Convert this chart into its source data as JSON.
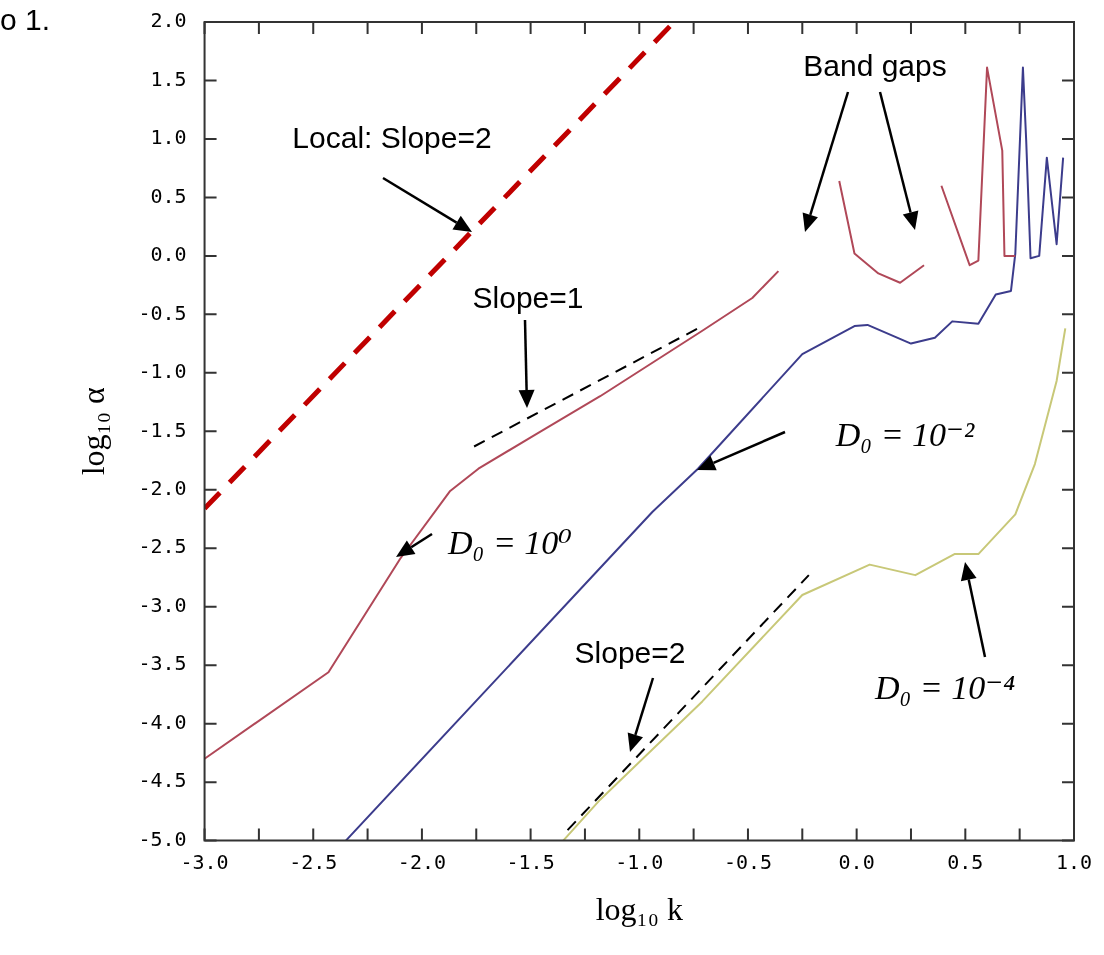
{
  "chart_data": {
    "type": "line",
    "xlabel": "log₁₀ k",
    "ylabel": "log₁₀ α",
    "xlim": [
      -3.0,
      1.0
    ],
    "xticks": [
      {
        "value": -3,
        "label": "-3.0"
      },
      {
        "value": -2.75,
        "label": null
      },
      {
        "value": -2.5,
        "label": "-2.5"
      },
      {
        "value": -2.25,
        "label": null
      },
      {
        "value": -2,
        "label": "-2.0"
      },
      {
        "value": -1.75,
        "label": null
      },
      {
        "value": -1.5,
        "label": "-1.5"
      },
      {
        "value": -1.25,
        "label": null
      },
      {
        "value": -1,
        "label": "-1.0"
      },
      {
        "value": -0.75,
        "label": null
      },
      {
        "value": -0.5,
        "label": "-0.5"
      },
      {
        "value": -0.25,
        "label": null
      },
      {
        "value": 0,
        "label": "0.0"
      },
      {
        "value": 0.25,
        "label": null
      },
      {
        "value": 0.5,
        "label": "0.5"
      },
      {
        "value": 0.75,
        "label": null
      },
      {
        "value": 1,
        "label": "1.0"
      }
    ],
    "ylim": [
      -5.0,
      2.0
    ],
    "yticks": [
      {
        "value": -5,
        "label": "-5.0"
      },
      {
        "value": -4.5,
        "label": "-4.5"
      },
      {
        "value": -4,
        "label": "-4.0"
      },
      {
        "value": -3.5,
        "label": "-3.5"
      },
      {
        "value": -3,
        "label": "-3.0"
      },
      {
        "value": -2.5,
        "label": "-2.5"
      },
      {
        "value": -2,
        "label": "-2.0"
      },
      {
        "value": -1.5,
        "label": "-1.5"
      },
      {
        "value": -1,
        "label": "-1.0"
      },
      {
        "value": -0.5,
        "label": "-0.5"
      },
      {
        "value": 0,
        "label": "0.0"
      },
      {
        "value": 0.5,
        "label": "0.5"
      },
      {
        "value": 1,
        "label": "1.0"
      },
      {
        "value": 1.5,
        "label": "1.5"
      },
      {
        "value": 2,
        "label": "2.0"
      }
    ],
    "marker": "none",
    "series": [
      {
        "color": "#c00000",
        "line_style": "dashed",
        "x": [
          -3.0,
          -0.84
        ],
        "values": [
          -2.16,
          2.0
        ]
      },
      {
        "color": "#b04858",
        "line_style": "solid",
        "x": [
          -3.0,
          -2.43,
          -2.1,
          -1.87,
          -1.74,
          -1.48,
          -1.18,
          -0.71,
          -0.48,
          -0.36,
          -0.22,
          -0.08,
          -0.01,
          0.1,
          0.2,
          0.31,
          0.35,
          0.39,
          0.52,
          0.56,
          0.6,
          0.67,
          0.68,
          0.73
        ],
        "values": [
          -4.3,
          -3.56,
          -2.59,
          -2.01,
          -1.82,
          -1.53,
          -1.2,
          -0.64,
          -0.36,
          -0.13,
          null,
          0.64,
          0.02,
          -0.15,
          -0.23,
          -0.08,
          null,
          0.6,
          -0.08,
          -0.04,
          1.61,
          0.9,
          0.0,
          0.0
        ]
      },
      {
        "color": "#3c3c8c",
        "line_style": "solid",
        "x": [
          -2.35,
          -0.94,
          -0.73,
          -0.25,
          -0.01,
          0.05,
          0.25,
          0.36,
          0.44,
          0.56,
          0.64,
          0.71,
          0.73,
          0.765,
          0.78,
          0.8,
          0.84,
          0.875,
          0.92,
          0.95
        ],
        "values": [
          -5.0,
          -2.19,
          -1.82,
          -0.84,
          -0.6,
          -0.59,
          -0.75,
          -0.7,
          -0.56,
          -0.58,
          -0.33,
          -0.3,
          0.02,
          1.61,
          0.99,
          -0.02,
          0.0,
          0.84,
          0.1,
          0.84
        ]
      },
      {
        "color": "#c8c878",
        "line_style": "solid",
        "x": [
          -1.35,
          -1.18,
          -0.71,
          -0.25,
          0.06,
          0.27,
          0.45,
          0.56,
          0.73,
          0.82,
          0.92,
          0.96
        ],
        "values": [
          -5.0,
          -4.65,
          -3.81,
          -2.9,
          -2.64,
          -2.73,
          -2.55,
          -2.55,
          -2.21,
          -1.78,
          -1.07,
          -0.62
        ]
      },
      {
        "color": "#000000",
        "line_style": "dashed",
        "x": [
          -1.76,
          -0.73
        ],
        "values": [
          -1.63,
          -0.62
        ]
      },
      {
        "color": "#000000",
        "line_style": "dashed",
        "x": [
          -1.33,
          -0.22
        ],
        "values": [
          -4.91,
          -2.73
        ]
      }
    ],
    "annotations": [
      "Local: Slope=2",
      "Slope=1",
      "D₀ = 10⁰",
      "D₀ = 10⁻²",
      "Slope=2",
      "D₀ = 10⁻⁴",
      "Band gaps",
      "o 1."
    ]
  }
}
